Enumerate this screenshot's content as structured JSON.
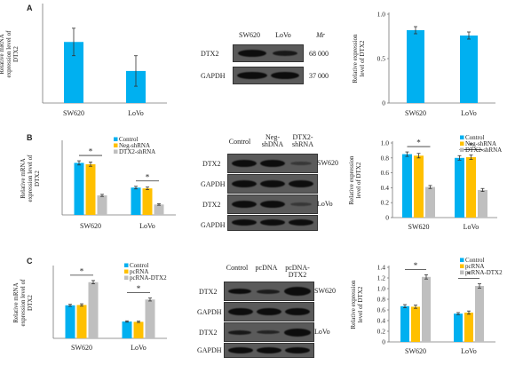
{
  "colors": {
    "control": "#00b0f0",
    "neg": "#ffc000",
    "target": "#bfbfbf",
    "single": "#00b0f0"
  },
  "panels": [
    {
      "id": "A",
      "left_chart": {
        "type": "bar",
        "ylabel": "Relative mRNA expression level of DTX2",
        "categories": [
          "SW620",
          "LoVo"
        ],
        "values": [
          2.0,
          1.05
        ],
        "errors": [
          0.45,
          0.5
        ],
        "ylim": [
          0,
          3.2
        ]
      },
      "blot": {
        "lanes": [
          "SW620",
          "LoVo"
        ],
        "rows": [
          "DTX2",
          "GAPDH"
        ],
        "mr_header": "Mr",
        "mr_values": [
          "68 000",
          "37 000"
        ]
      },
      "right_chart": {
        "type": "bar",
        "ylabel": "Relative expression level of DTX2",
        "categories": [
          "SW620",
          "LoVo"
        ],
        "values": [
          0.82,
          0.76
        ],
        "errors": [
          0.04,
          0.04
        ],
        "ticks": [
          "0",
          "0.5",
          "1.0"
        ],
        "ylim": [
          0,
          1.0
        ]
      }
    },
    {
      "id": "B",
      "left_chart": {
        "type": "bar",
        "ylabel": "Relative mRNA expression level of DTX2",
        "categories": [
          "SW620",
          "LoVo"
        ],
        "legend": [
          "Control",
          "Neg-shRNA",
          "DTX2-shRNA"
        ],
        "series": [
          {
            "name": "Control",
            "values": [
              2.0,
              1.05
            ]
          },
          {
            "name": "Neg-shRNA",
            "values": [
              1.95,
              1.02
            ]
          },
          {
            "name": "DTX2-shRNA",
            "values": [
              0.75,
              0.4
            ]
          }
        ],
        "errors": [
          [
            0.08,
            0.05
          ],
          [
            0.08,
            0.05
          ],
          [
            0.04,
            0.03
          ]
        ],
        "sig": [
          "*",
          "*"
        ],
        "ylim": [
          0,
          2.8
        ]
      },
      "blot": {
        "lanes": [
          "Control",
          "Neg-shDNA",
          "DTX2-shRNA"
        ],
        "rows": [
          "DTX2",
          "GAPDH",
          "DTX2",
          "GAPDH"
        ],
        "cell_labels": [
          "SW620",
          "LoVo"
        ]
      },
      "right_chart": {
        "type": "bar",
        "ylabel": "Relative expression level of DTX2",
        "categories": [
          "SW620",
          "LoVo"
        ],
        "legend": [
          "Control",
          "Neg-shRNA",
          "DTX2-shRNA"
        ],
        "series": [
          {
            "name": "Control",
            "values": [
              0.85,
              0.8
            ]
          },
          {
            "name": "Neg-shRNA",
            "values": [
              0.83,
              0.81
            ]
          },
          {
            "name": "DTX2-shRNA",
            "values": [
              0.41,
              0.37
            ]
          }
        ],
        "errors": [
          [
            0.03,
            0.03
          ],
          [
            0.03,
            0.03
          ],
          [
            0.02,
            0.02
          ]
        ],
        "sig": [
          "*",
          "*"
        ],
        "ticks": [
          "0",
          "0.2",
          "0.4",
          "0.6",
          "0.8",
          "1.0"
        ],
        "ylim": [
          0,
          1.0
        ]
      }
    },
    {
      "id": "C",
      "left_chart": {
        "type": "bar",
        "ylabel": "Relative mRNA expression level of DTX2",
        "categories": [
          "SW620",
          "LoVo"
        ],
        "legend": [
          "Control",
          "pcRNA",
          "pcRNA-DTX2"
        ],
        "series": [
          {
            "name": "Control",
            "values": [
              2.0,
              1.02
            ]
          },
          {
            "name": "pcRNA",
            "values": [
              2.02,
              1.0
            ]
          },
          {
            "name": "pcRNA-DTX2",
            "values": [
              3.4,
              2.35
            ]
          }
        ],
        "errors": [
          [
            0.06,
            0.04
          ],
          [
            0.07,
            0.04
          ],
          [
            0.1,
            0.09
          ]
        ],
        "sig": [
          "*",
          "*"
        ],
        "ylim": [
          0,
          4.3
        ]
      },
      "blot": {
        "lanes": [
          "Control",
          "pcDNA",
          "pcDNA-DTX2"
        ],
        "rows": [
          "DTX2",
          "GAPDH",
          "DTX2",
          "GAPDH"
        ],
        "cell_labels": [
          "SW620",
          "LoVo"
        ]
      },
      "right_chart": {
        "type": "bar",
        "ylabel": "Relative expression level of DTX2",
        "categories": [
          "SW620",
          "LoVo"
        ],
        "legend": [
          "Control",
          "pcRNA",
          "pcRNA-DTX2"
        ],
        "series": [
          {
            "name": "Control",
            "values": [
              0.67,
              0.53
            ]
          },
          {
            "name": "pcRNA",
            "values": [
              0.66,
              0.55
            ]
          },
          {
            "name": "pcRNA-DTX2",
            "values": [
              1.22,
              1.05
            ]
          }
        ],
        "errors": [
          [
            0.03,
            0.02
          ],
          [
            0.03,
            0.03
          ],
          [
            0.04,
            0.04
          ]
        ],
        "sig": [
          "*",
          "*"
        ],
        "ticks": [
          "0",
          "0.2",
          "0.4",
          "0.6",
          "0.8",
          "1.0",
          "1.2",
          "1.4"
        ],
        "ylim": [
          0,
          1.4
        ]
      }
    }
  ]
}
